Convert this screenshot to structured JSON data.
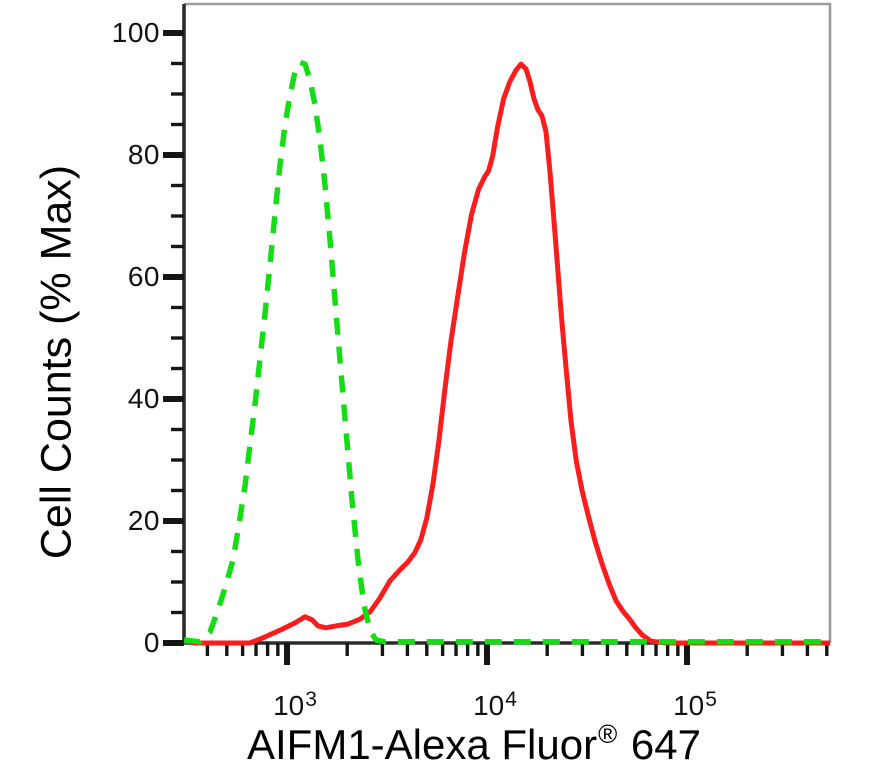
{
  "figure": {
    "background": "#ffffff",
    "axis_dark_color": "#2b2b2b",
    "axis_light_color": "#9c9c9c",
    "tick_color": "#161616",
    "text_color": "#000000"
  },
  "chart_data": {
    "type": "line",
    "subtype": "flow-cytometry-histogram-overlay",
    "title": "",
    "ylabel": "Cell Counts (% Max)",
    "xlabel": {
      "text": "AIFM1-Alexa Fluor",
      "sup": "®",
      "suffix": " 647"
    },
    "x_scale": "log",
    "x_range": [
      306,
      520000
    ],
    "y_range": [
      0,
      104.7
    ],
    "grid": false,
    "legend": "none",
    "y_ticks_major": [
      0,
      20,
      40,
      60,
      80,
      100
    ],
    "y_tick_minor_step": 5,
    "x_ticks_major": [
      {
        "value": 1000,
        "base": "10",
        "exp": "3"
      },
      {
        "value": 10000,
        "base": "10",
        "exp": "4"
      },
      {
        "value": 100000,
        "base": "10",
        "exp": "5"
      }
    ],
    "series": [
      {
        "name": "red-solid-stained",
        "color": "#f91d1d",
        "line_style": "solid",
        "stroke_width": 5,
        "peak": {
          "x": 14800,
          "pct": 94.9
        },
        "points": [
          [
            306,
            0.3
          ],
          [
            347,
            0
          ],
          [
            463,
            0
          ],
          [
            653,
            0
          ],
          [
            777,
            1.0
          ],
          [
            923,
            2.1
          ],
          [
            1096,
            3.3
          ],
          [
            1230,
            4.3
          ],
          [
            1334,
            3.8
          ],
          [
            1429,
            2.8
          ],
          [
            1565,
            2.5
          ],
          [
            1757,
            2.8
          ],
          [
            2018,
            3.1
          ],
          [
            2317,
            3.9
          ],
          [
            2600,
            5.1
          ],
          [
            2917,
            7.4
          ],
          [
            3273,
            10.2
          ],
          [
            3672,
            12.0
          ],
          [
            4028,
            13.3
          ],
          [
            4357,
            14.8
          ],
          [
            4665,
            16.9
          ],
          [
            4998,
            20.5
          ],
          [
            5358,
            25.9
          ],
          [
            5742,
            33.0
          ],
          [
            6153,
            41.5
          ],
          [
            6594,
            49.3
          ],
          [
            7145,
            56.9
          ],
          [
            7727,
            64.1
          ],
          [
            8375,
            70.3
          ],
          [
            9078,
            74.4
          ],
          [
            9727,
            76.4
          ],
          [
            10190,
            77.4
          ],
          [
            10670,
            79.8
          ],
          [
            11300,
            84.6
          ],
          [
            12110,
            89.2
          ],
          [
            13000,
            92.0
          ],
          [
            13960,
            93.9
          ],
          [
            14790,
            94.9
          ],
          [
            15670,
            94.1
          ],
          [
            16410,
            92.0
          ],
          [
            17180,
            89.2
          ],
          [
            17990,
            87.4
          ],
          [
            18840,
            86.4
          ],
          [
            19720,
            83.8
          ],
          [
            20650,
            77.2
          ],
          [
            21620,
            69.2
          ],
          [
            22640,
            60.8
          ],
          [
            23700,
            52.6
          ],
          [
            24830,
            45.2
          ],
          [
            26290,
            36.4
          ],
          [
            27960,
            29.8
          ],
          [
            29920,
            24.9
          ],
          [
            32130,
            20.8
          ],
          [
            34690,
            16.7
          ],
          [
            37580,
            13.0
          ],
          [
            40790,
            9.7
          ],
          [
            44190,
            6.9
          ],
          [
            47860,
            5.2
          ],
          [
            51640,
            3.9
          ],
          [
            55470,
            2.5
          ],
          [
            59870,
            1.3
          ],
          [
            66070,
            0.3
          ],
          [
            78700,
            0
          ],
          [
            520000,
            0
          ]
        ]
      },
      {
        "name": "green-dashed-control",
        "color": "#16dc16",
        "line_style": "dashed",
        "stroke_width": 5.5,
        "dash_pattern": "17 12",
        "peak": {
          "x": 1160,
          "pct": 95.2
        },
        "points": [
          [
            306,
            0.5
          ],
          [
            367,
            0.2
          ],
          [
            412,
            1.8
          ],
          [
            452,
            5.4
          ],
          [
            495,
            9.5
          ],
          [
            537,
            13.6
          ],
          [
            575,
            19.3
          ],
          [
            617,
            25.9
          ],
          [
            653,
            32.5
          ],
          [
            691,
            39.0
          ],
          [
            732,
            46.4
          ],
          [
            775,
            53.8
          ],
          [
            822,
            62.0
          ],
          [
            870,
            70.2
          ],
          [
            923,
            78.4
          ],
          [
            977,
            84.9
          ],
          [
            1035,
            89.8
          ],
          [
            1096,
            93.6
          ],
          [
            1161,
            95.2
          ],
          [
            1230,
            94.9
          ],
          [
            1303,
            92.3
          ],
          [
            1380,
            88.2
          ],
          [
            1462,
            82.5
          ],
          [
            1549,
            75.1
          ],
          [
            1641,
            66.1
          ],
          [
            1738,
            56.2
          ],
          [
            1841,
            46.4
          ],
          [
            1972,
            34.9
          ],
          [
            2113,
            23.4
          ],
          [
            2264,
            13.6
          ],
          [
            2426,
            6.2
          ],
          [
            2600,
            2.1
          ],
          [
            2786,
            0.5
          ],
          [
            3090,
            0.2
          ],
          [
            520000,
            0.2
          ]
        ]
      }
    ]
  }
}
